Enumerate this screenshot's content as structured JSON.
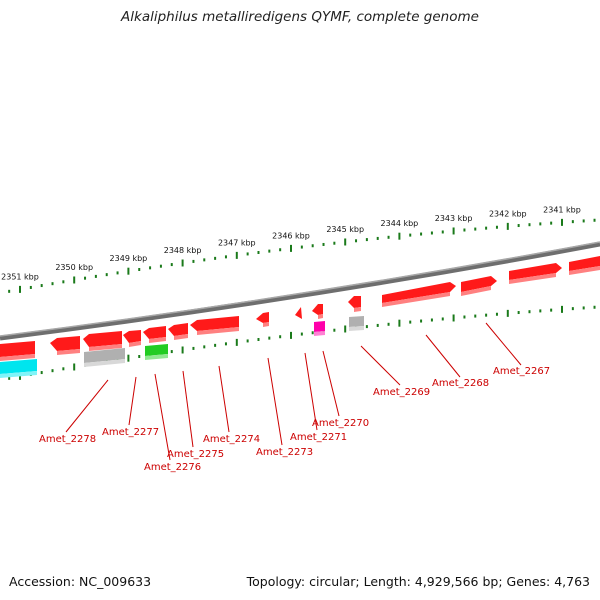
{
  "header": {
    "title": "Alkaliphilus metalliredigens QYMF, complete genome"
  },
  "footer": {
    "accession": "Accession: NC_009633",
    "summary": "Topology: circular; Length: 4,929,566 bp; Genes: 4,763"
  },
  "scale": {
    "unit": "kbp",
    "ticks": [
      {
        "kbp": 2341,
        "label": "2341 kbp"
      },
      {
        "kbp": 2342,
        "label": "2342 kbp"
      },
      {
        "kbp": 2343,
        "label": "2343 kbp"
      },
      {
        "kbp": 2344,
        "label": "2344 kbp"
      },
      {
        "kbp": 2345,
        "label": "2345 kbp"
      },
      {
        "kbp": 2346,
        "label": "2346 kbp"
      },
      {
        "kbp": 2347,
        "label": "2347 kbp"
      },
      {
        "kbp": 2348,
        "label": "2348 kbp"
      },
      {
        "kbp": 2349,
        "label": "2349 kbp"
      },
      {
        "kbp": 2350,
        "label": "2350 kbp"
      },
      {
        "kbp": 2351,
        "label": "2351 kbp"
      }
    ]
  },
  "colors": {
    "cds": "#ff0000",
    "gray_feature": "#b0b0b0",
    "green_feature": "#22cc22",
    "magenta_feature": "#ff00aa",
    "cyan_feature": "#00e5ee",
    "backbone": "#888888",
    "ticks": "#1a7a1a",
    "gene_label": "#cc0000"
  },
  "genes": [
    {
      "label": "Amet_2267"
    },
    {
      "label": "Amet_2268"
    },
    {
      "label": "Amet_2269"
    },
    {
      "label": "Amet_2270"
    },
    {
      "label": "Amet_2271"
    },
    {
      "label": "Amet_2273"
    },
    {
      "label": "Amet_2274"
    },
    {
      "label": "Amet_2275"
    },
    {
      "label": "Amet_2276"
    },
    {
      "label": "Amet_2277"
    },
    {
      "label": "Amet_2278"
    }
  ]
}
